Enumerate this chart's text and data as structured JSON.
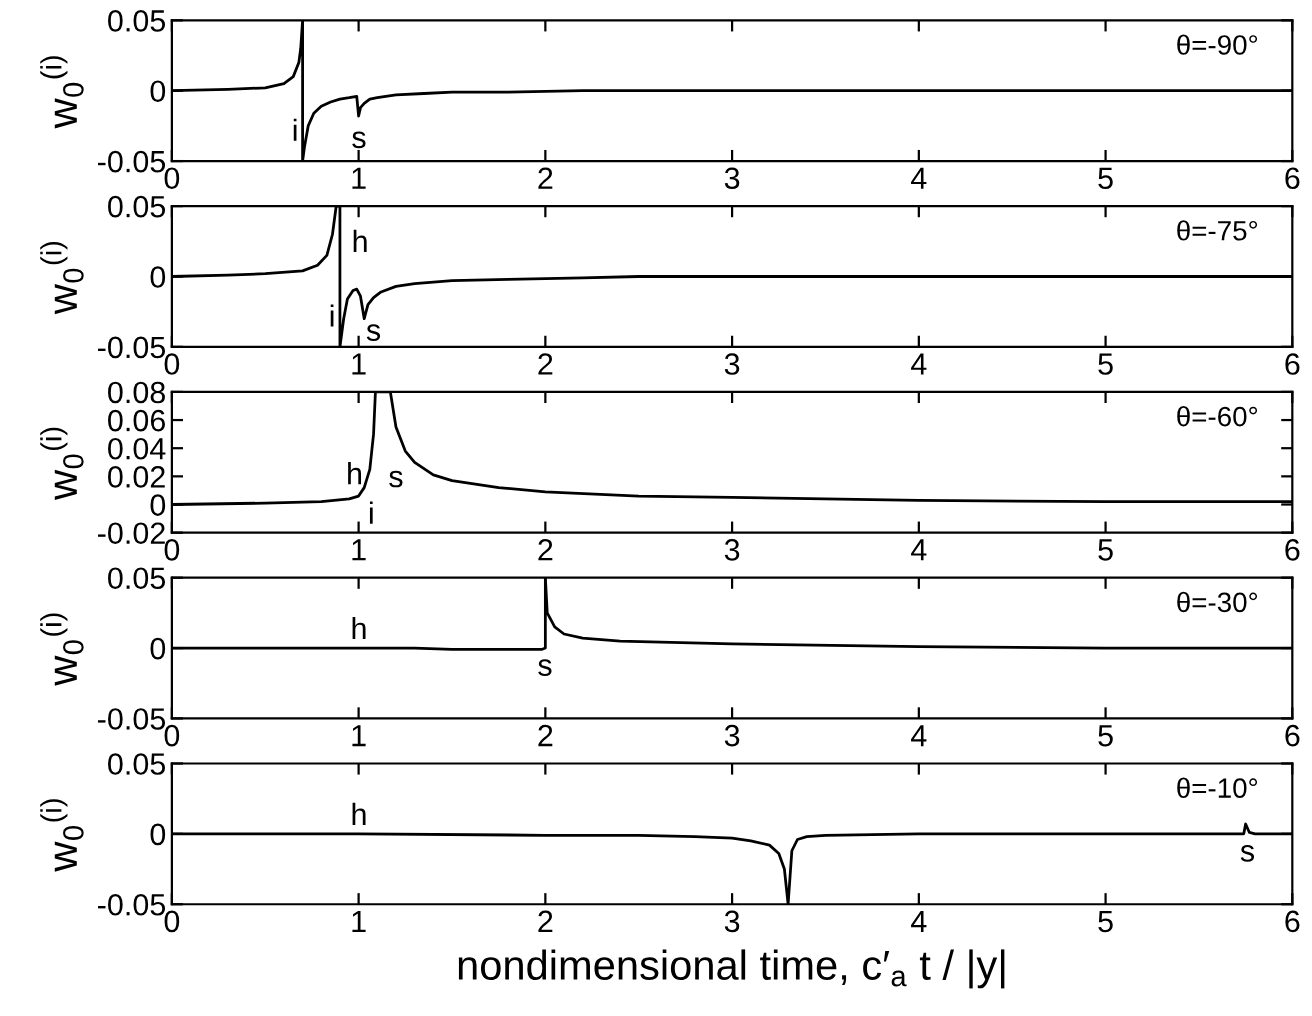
{
  "chart_data": [
    {
      "type": "line",
      "ylabel": "w$_{0}$$^{(i)}$",
      "xlim": [
        0,
        6
      ],
      "ylim": [
        -0.05,
        0.05
      ],
      "xticks": [
        0,
        1,
        2,
        3,
        4,
        5,
        6
      ],
      "yticks": [
        -0.05,
        0,
        0.05
      ],
      "grid": false,
      "legend": false,
      "series": [
        {
          "color": "#000000",
          "x": [
            0,
            0.3,
            0.5,
            0.6,
            0.65,
            0.68,
            0.69,
            0.7,
            0.7,
            0.71,
            0.73,
            0.76,
            0.8,
            0.85,
            0.9,
            0.95,
            0.99,
            1.0,
            1.01,
            1.03,
            1.06,
            1.1,
            1.2,
            1.35,
            1.5,
            1.8,
            2.2,
            3,
            4,
            5,
            6
          ],
          "values": [
            0,
            0.001,
            0.002,
            0.005,
            0.01,
            0.02,
            0.03,
            0.05,
            -0.05,
            -0.04,
            -0.025,
            -0.016,
            -0.011,
            -0.008,
            -0.006,
            -0.005,
            -0.004,
            -0.018,
            -0.012,
            -0.009,
            -0.006,
            -0.005,
            -0.003,
            -0.002,
            -0.001,
            -0.001,
            0,
            0,
            0,
            0,
            0
          ]
        }
      ],
      "annotations": [
        "θ=-90°",
        "i",
        "s"
      ]
    },
    {
      "type": "line",
      "ylabel": "w$_{0}$$^{(i)}$",
      "xlim": [
        0,
        6
      ],
      "ylim": [
        -0.05,
        0.05
      ],
      "xticks": [
        0,
        1,
        2,
        3,
        4,
        5,
        6
      ],
      "yticks": [
        -0.05,
        0,
        0.05
      ],
      "grid": false,
      "legend": false,
      "series": [
        {
          "color": "#000000",
          "x": [
            0,
            0.3,
            0.5,
            0.7,
            0.78,
            0.83,
            0.86,
            0.88,
            0.9,
            0.9,
            0.92,
            0.94,
            0.97,
            0.99,
            1.01,
            1.03,
            1.05,
            1.08,
            1.12,
            1.2,
            1.3,
            1.5,
            1.8,
            2.2,
            2.5,
            3,
            4,
            5,
            6
          ],
          "values": [
            0,
            0.001,
            0.002,
            0.004,
            0.008,
            0.015,
            0.03,
            0.05,
            0.05,
            -0.05,
            -0.03,
            -0.016,
            -0.01,
            -0.009,
            -0.014,
            -0.03,
            -0.02,
            -0.015,
            -0.011,
            -0.007,
            -0.005,
            -0.003,
            -0.002,
            -0.001,
            0,
            0,
            0,
            0,
            0
          ]
        }
      ],
      "annotations": [
        "θ=-75°",
        "h",
        "i",
        "s"
      ]
    },
    {
      "type": "line",
      "ylabel": "w$_{0}$$^{(i)}$",
      "xlim": [
        0,
        6
      ],
      "ylim": [
        -0.02,
        0.08
      ],
      "xticks": [
        0,
        1,
        2,
        3,
        4,
        5,
        6
      ],
      "yticks": [
        -0.02,
        0,
        0.02,
        0.04,
        0.06,
        0.08
      ],
      "grid": false,
      "legend": false,
      "series": [
        {
          "color": "#000000",
          "x": [
            0,
            0.5,
            0.8,
            0.95,
            1.0,
            1.03,
            1.06,
            1.08,
            1.09,
            1.17,
            1.2,
            1.25,
            1.3,
            1.4,
            1.5,
            1.75,
            2,
            2.5,
            3,
            4,
            5,
            6
          ],
          "values": [
            0,
            0.001,
            0.002,
            0.004,
            0.006,
            0.012,
            0.025,
            0.05,
            0.08,
            0.08,
            0.055,
            0.038,
            0.03,
            0.021,
            0.017,
            0.012,
            0.009,
            0.006,
            0.005,
            0.003,
            0.002,
            0.002
          ]
        }
      ],
      "annotations": [
        "θ=-60°",
        "h",
        "s",
        "i"
      ]
    },
    {
      "type": "line",
      "ylabel": "w$_{0}$$^{(i)}$",
      "xlim": [
        0,
        6
      ],
      "ylim": [
        -0.05,
        0.05
      ],
      "xticks": [
        0,
        1,
        2,
        3,
        4,
        5,
        6
      ],
      "yticks": [
        -0.05,
        0,
        0.05
      ],
      "grid": false,
      "legend": false,
      "series": [
        {
          "color": "#000000",
          "x": [
            0,
            1,
            1.3,
            1.5,
            1.98,
            2.0,
            2.0,
            2.01,
            2.05,
            2.1,
            2.2,
            2.4,
            3,
            4,
            5,
            6
          ],
          "values": [
            0,
            0,
            0,
            -0.001,
            -0.001,
            0,
            0.05,
            0.025,
            0.015,
            0.01,
            0.007,
            0.005,
            0.003,
            0.001,
            0,
            0
          ]
        }
      ],
      "annotations": [
        "θ=-30°",
        "h",
        "s"
      ]
    },
    {
      "type": "line",
      "ylabel": "w$_{0}$$^{(i)}$",
      "xlabel": "nondimensional time, c′$_{a}$ t / |y|",
      "xlim": [
        0,
        6
      ],
      "ylim": [
        -0.05,
        0.05
      ],
      "xticks": [
        0,
        1,
        2,
        3,
        4,
        5,
        6
      ],
      "yticks": [
        -0.05,
        0,
        0.05
      ],
      "grid": false,
      "legend": false,
      "series": [
        {
          "color": "#000000",
          "x": [
            0,
            1,
            2,
            2.5,
            2.8,
            3.0,
            3.1,
            3.2,
            3.25,
            3.28,
            3.3,
            3.32,
            3.35,
            3.4,
            3.5,
            4,
            5,
            5.74,
            5.75,
            5.77,
            5.8,
            6
          ],
          "values": [
            0,
            0,
            -0.001,
            -0.001,
            -0.002,
            -0.003,
            -0.005,
            -0.008,
            -0.014,
            -0.025,
            -0.05,
            -0.012,
            -0.004,
            -0.002,
            -0.001,
            0,
            0,
            0,
            0.007,
            0.001,
            0,
            0
          ]
        }
      ],
      "annotations": [
        "θ=-10°",
        "h",
        "s"
      ]
    }
  ]
}
